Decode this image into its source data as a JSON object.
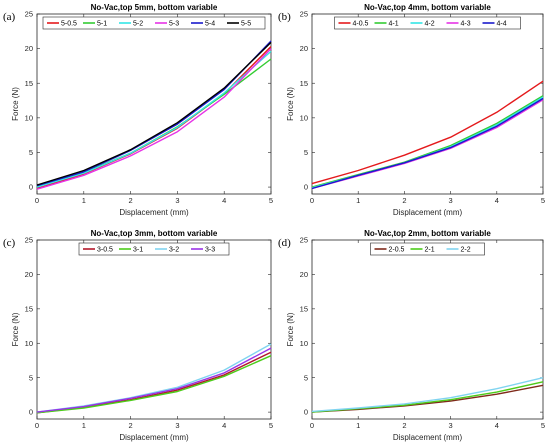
{
  "chart_data": [
    {
      "panel_label": "(a)",
      "type": "line",
      "title": "No-Vac,top 5mm, bottom variable",
      "xlabel": "Displacement (mm)",
      "ylabel": "Force (N)",
      "xlim": [
        0,
        5
      ],
      "ylim": [
        -1,
        25
      ],
      "xticks": [
        0,
        1,
        2,
        3,
        4,
        5
      ],
      "yticks": [
        0,
        5,
        10,
        15,
        20,
        25
      ],
      "grid": false,
      "legend_position": "top",
      "x": [
        0,
        1,
        2,
        3,
        4,
        5
      ],
      "series": [
        {
          "name": "5-0.5",
          "color": "#e41a1c",
          "values": [
            -0.2,
            1.9,
            4.8,
            8.5,
            13.5,
            20.3
          ]
        },
        {
          "name": "5-1",
          "color": "#33cc33",
          "values": [
            0.1,
            2.1,
            4.9,
            8.7,
            13.4,
            18.5
          ]
        },
        {
          "name": "5-2",
          "color": "#33e6e6",
          "values": [
            0.0,
            2.0,
            4.9,
            8.6,
            13.6,
            19.6
          ]
        },
        {
          "name": "5-3",
          "color": "#e633e6",
          "values": [
            -0.3,
            1.7,
            4.5,
            8.0,
            13.0,
            20.0
          ]
        },
        {
          "name": "5-4",
          "color": "#1a1acc",
          "values": [
            0.2,
            2.2,
            5.3,
            9.1,
            14.1,
            21.1
          ]
        },
        {
          "name": "5-5",
          "color": "#000000",
          "values": [
            0.3,
            2.4,
            5.4,
            9.3,
            14.3,
            20.9
          ]
        }
      ]
    },
    {
      "panel_label": "(b)",
      "type": "line",
      "title": "No-Vac,top 4mm, bottom variable",
      "xlabel": "Displacement (mm)",
      "ylabel": "Force (N)",
      "xlim": [
        0,
        5
      ],
      "ylim": [
        -1,
        25
      ],
      "xticks": [
        0,
        1,
        2,
        3,
        4,
        5
      ],
      "yticks": [
        0,
        5,
        10,
        15,
        20,
        25
      ],
      "grid": false,
      "legend_position": "top",
      "x": [
        0,
        1,
        2,
        3,
        4,
        5
      ],
      "series": [
        {
          "name": "4-0.5",
          "color": "#e41a1c",
          "values": [
            0.5,
            2.4,
            4.6,
            7.2,
            10.8,
            15.3
          ]
        },
        {
          "name": "4-1",
          "color": "#33cc33",
          "values": [
            0.0,
            1.8,
            3.6,
            6.0,
            9.2,
            13.2
          ]
        },
        {
          "name": "4-2",
          "color": "#33e6e6",
          "values": [
            -0.1,
            1.7,
            3.5,
            5.8,
            9.0,
            13.0
          ]
        },
        {
          "name": "4-3",
          "color": "#e633e6",
          "values": [
            -0.2,
            1.6,
            3.4,
            5.6,
            8.6,
            12.6
          ]
        },
        {
          "name": "4-4",
          "color": "#1a1acc",
          "values": [
            -0.2,
            1.7,
            3.5,
            5.7,
            8.8,
            12.8
          ]
        }
      ]
    },
    {
      "panel_label": "(c)",
      "type": "line",
      "title": "No-Vac,top 3mm, bottom variable",
      "xlabel": "Displacement (mm)",
      "ylabel": "Force (N)",
      "xlim": [
        0,
        5
      ],
      "ylim": [
        -1,
        25
      ],
      "xticks": [
        0,
        1,
        2,
        3,
        4,
        5
      ],
      "yticks": [
        0,
        5,
        10,
        15,
        20,
        25
      ],
      "grid": false,
      "legend_position": "top",
      "x": [
        0,
        1,
        2,
        3,
        4,
        5
      ],
      "series": [
        {
          "name": "3-0.5",
          "color": "#b2182b",
          "values": [
            -0.1,
            0.7,
            1.8,
            3.2,
            5.4,
            8.7
          ]
        },
        {
          "name": "3-1",
          "color": "#4dcc1a",
          "values": [
            -0.1,
            0.6,
            1.7,
            3.0,
            5.2,
            8.2
          ]
        },
        {
          "name": "3-2",
          "color": "#80d4f0",
          "values": [
            0.0,
            0.9,
            2.1,
            3.6,
            6.1,
            9.9
          ]
        },
        {
          "name": "3-3",
          "color": "#9933e6",
          "values": [
            0.0,
            0.8,
            2.0,
            3.4,
            5.7,
            9.3
          ]
        }
      ]
    },
    {
      "panel_label": "(d)",
      "type": "line",
      "title": "No-Vac,top 2mm, bottom variable",
      "xlabel": "Displacement (mm)",
      "ylabel": "Force (N)",
      "xlim": [
        0,
        5
      ],
      "ylim": [
        -1,
        25
      ],
      "xticks": [
        0,
        1,
        2,
        3,
        4,
        5
      ],
      "yticks": [
        0,
        5,
        10,
        15,
        20,
        25
      ],
      "grid": false,
      "legend_position": "top",
      "x": [
        0,
        1,
        2,
        3,
        4,
        5
      ],
      "series": [
        {
          "name": "2-0.5",
          "color": "#7f2a1a",
          "values": [
            0.0,
            0.4,
            0.9,
            1.6,
            2.6,
            3.9
          ]
        },
        {
          "name": "2-1",
          "color": "#4dcc1a",
          "values": [
            0.0,
            0.5,
            1.0,
            1.8,
            2.9,
            4.4
          ]
        },
        {
          "name": "2-2",
          "color": "#80d4f0",
          "values": [
            0.1,
            0.6,
            1.2,
            2.1,
            3.4,
            5.0
          ]
        }
      ]
    }
  ]
}
